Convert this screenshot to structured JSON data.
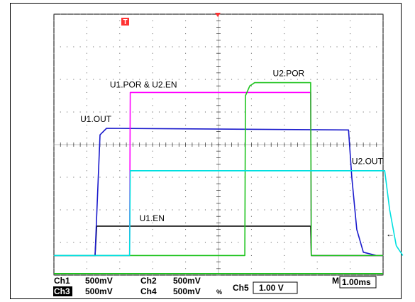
{
  "chart_data": {
    "type": "line",
    "title": "",
    "xlabel": "",
    "ylabel": "",
    "x_unit": "ms",
    "time_per_div_ms": 1.0,
    "grid": true,
    "divisions": {
      "x": 10,
      "y": 8
    },
    "xlim": [
      0,
      10
    ],
    "ylim": [
      0,
      8
    ],
    "series": [
      {
        "name": "U1.EN",
        "color": "#000000",
        "x": [
          0,
          1.25,
          1.3,
          7.8,
          7.82,
          10
        ],
        "y": [
          0.6,
          0.6,
          1.5,
          1.5,
          0.6,
          0.6
        ]
      },
      {
        "name": "U1.OUT",
        "color": "#1a1acc",
        "x": [
          0,
          1.25,
          1.4,
          1.6,
          8.95,
          9.05,
          9.2,
          9.4,
          9.8,
          10
        ],
        "y": [
          0.6,
          0.6,
          4.3,
          4.5,
          4.45,
          3.0,
          1.4,
          0.7,
          0.6,
          0.6
        ]
      },
      {
        "name": "U1.POR & U2.EN",
        "color": "#ff00ff",
        "x": [
          0,
          2.3,
          2.32,
          7.8,
          7.82,
          10
        ],
        "y": [
          0.6,
          0.6,
          5.6,
          5.6,
          0.6,
          0.6
        ]
      },
      {
        "name": "U2.POR",
        "color": "#1fc41f",
        "x": [
          0,
          5.8,
          5.82,
          5.95,
          6.1,
          7.8,
          7.82,
          10
        ],
        "y": [
          0.6,
          0.6,
          5.5,
          5.8,
          5.9,
          5.9,
          0.6,
          0.6
        ]
      },
      {
        "name": "U2.OUT",
        "color": "#00e0e0",
        "x": [
          0,
          2.3,
          2.32,
          10.0
        ],
        "y": [
          0.6,
          0.6,
          3.2,
          3.2
        ],
        "x2": [
          2.32,
          10.05,
          10.2,
          10.4,
          10.6
        ],
        "y2": [
          3.2,
          3.2,
          2.0,
          0.9,
          0.6
        ]
      }
    ],
    "annotations": [
      {
        "text": "U1.EN",
        "x": 2.6,
        "y": 1.65
      },
      {
        "text": "U1.OUT",
        "x": 0.8,
        "y": 4.7
      },
      {
        "text": "U1.POR & U2.EN",
        "x": 1.7,
        "y": 5.75
      },
      {
        "text": "U2.POR",
        "x": 6.65,
        "y": 6.1
      },
      {
        "text": "U2.OUT",
        "x": 9.05,
        "y": 3.4
      }
    ]
  },
  "markers": {
    "trigger_label": "T",
    "trigger_color": "#ff3333",
    "level_arrow": "←"
  },
  "readout": {
    "ch1_label": "Ch1",
    "ch1_value": "500mV",
    "ch2_label": "Ch2",
    "ch2_value": "500mV",
    "ch3_label": "Ch3",
    "ch3_value": "500mV",
    "ch4_label": "Ch4",
    "ch4_value": "500mV",
    "ch4_suffix": "%",
    "ch5_label": "Ch5",
    "ch5_value": "1.00 V",
    "time_label": "M",
    "time_value": "1.00ms"
  }
}
